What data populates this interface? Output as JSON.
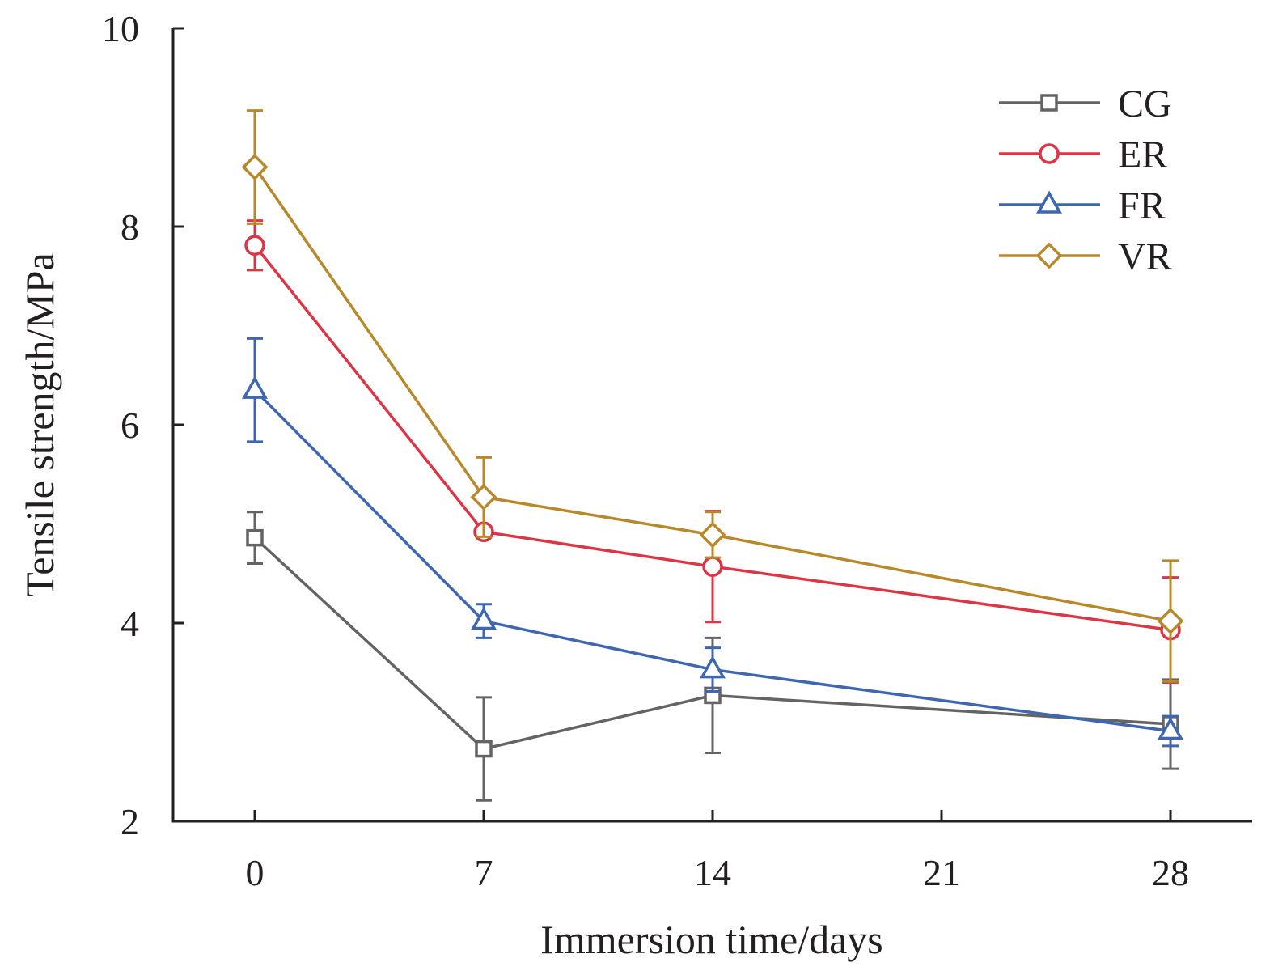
{
  "chart_data": {
    "type": "line",
    "title": "",
    "xlabel": "Immersion time/days",
    "ylabel": "Tensile strength/MPa",
    "x": [
      0,
      7,
      14,
      28
    ],
    "xticks": [
      0,
      7,
      14,
      21,
      28
    ],
    "xtick_labels": [
      "0",
      "7",
      "14",
      "21",
      "28"
    ],
    "yticks": [
      2,
      4,
      6,
      8,
      10
    ],
    "ytick_labels": [
      "2",
      "4",
      "6",
      "8",
      "10"
    ],
    "xlim": [
      -2.5,
      30.5
    ],
    "ylim": [
      2,
      10
    ],
    "grid": false,
    "legend_position": "top-right",
    "series": [
      {
        "name": "CG",
        "marker": "square",
        "color": "#646464",
        "values": [
          4.86,
          2.73,
          3.27,
          2.98
        ],
        "errors": [
          0.26,
          0.52,
          0.58,
          0.45
        ]
      },
      {
        "name": "ER",
        "marker": "circle",
        "color": "#dc3545",
        "values": [
          7.81,
          4.92,
          4.57,
          3.93
        ],
        "errors": [
          0.25,
          0.03,
          0.56,
          0.53
        ]
      },
      {
        "name": "FR",
        "marker": "triangle",
        "color": "#3f66b0",
        "values": [
          6.35,
          4.02,
          3.53,
          2.91
        ],
        "errors": [
          0.52,
          0.17,
          0.22,
          0.15
        ]
      },
      {
        "name": "VR",
        "marker": "diamond",
        "color": "#b8892a",
        "values": [
          8.6,
          5.27,
          4.89,
          4.02
        ],
        "errors": [
          0.57,
          0.4,
          0.23,
          0.61
        ]
      }
    ]
  }
}
